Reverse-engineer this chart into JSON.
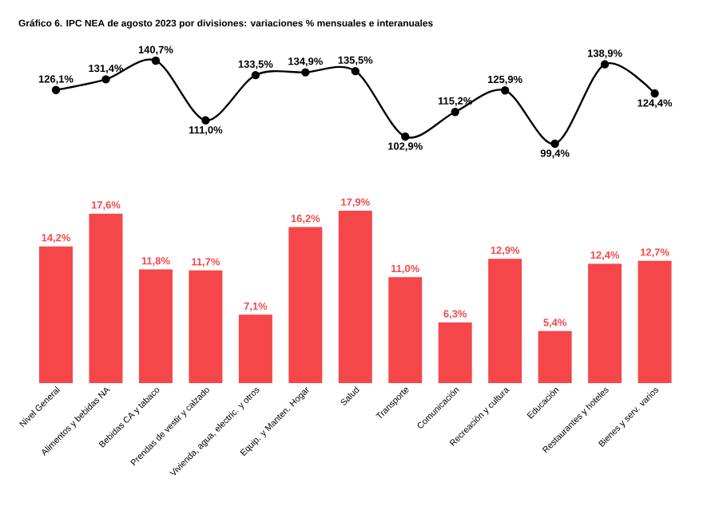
{
  "chart_data": [
    {
      "type": "line",
      "title": "Gráfico 6. IPC NEA de agosto 2023 por divisiones: variaciones % mensuales e interanuales",
      "categories": [
        null,
        null,
        null,
        null,
        null,
        null,
        null,
        null,
        null,
        null,
        null,
        null,
        null
      ],
      "values": [
        126.1,
        131.4,
        140.7,
        111.0,
        133.5,
        134.9,
        135.5,
        102.9,
        115.2,
        125.9,
        99.4,
        138.9,
        124.4
      ],
      "value_labels": [
        "126,1%",
        "131,4%",
        "140,7%",
        "111,0%",
        "133,5%",
        "134,9%",
        "135,5%",
        "102,9%",
        "115,2%",
        "125,9%",
        "99,4%",
        "138,9%",
        "124,4%"
      ],
      "color": "#000000",
      "marker": "circle"
    },
    {
      "type": "bar",
      "categories": [
        "Nivel General",
        "Alimentos y bebidas NA",
        "Bebidas CA y tabaco",
        "Prendas de vestir y calzado",
        "Vivienda, agua, electric. y otros",
        "Equip. y Manten. Hogar",
        "Salud",
        "Transporte",
        "Comunicación",
        "Recreación y cultura",
        "Educación",
        "Restaurantes y hoteles",
        "Bienes y serv. varios"
      ],
      "values": [
        14.2,
        17.6,
        11.8,
        11.7,
        7.1,
        16.2,
        17.9,
        11.0,
        6.3,
        12.9,
        5.4,
        12.4,
        12.7
      ],
      "value_labels": [
        "14,2%",
        "17,6%",
        "11,8%",
        "11,7%",
        "7,1%",
        "16,2%",
        "17,9%",
        "11,0%",
        "6,3%",
        "12,9%",
        "5,4%",
        "12,4%",
        "12,7%"
      ],
      "color": "#f5474a"
    }
  ]
}
